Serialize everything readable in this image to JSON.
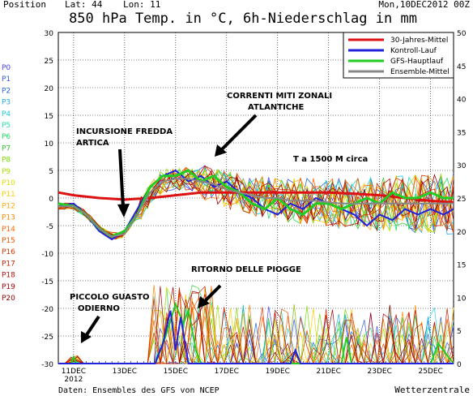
{
  "header": {
    "position": "Position",
    "lat": "Lat: 44",
    "lon": "Lon: 11",
    "run": "Mon,10DEC2012 00Z"
  },
  "chart_data": {
    "type": "line",
    "title": "850 hPa Temp. in °C, 6h-Niederschlag in mm",
    "ylim_left": [
      -30,
      30
    ],
    "ylim_right": [
      0,
      50
    ],
    "left_ticks": [
      30,
      25,
      20,
      15,
      10,
      5,
      0,
      -5,
      -10,
      -15,
      -20,
      -25,
      -30
    ],
    "right_ticks": [
      50,
      45,
      40,
      35,
      30,
      25,
      20,
      15,
      10,
      5,
      0
    ],
    "x_ticks": [
      "11DEC",
      "13DEC",
      "15DEC",
      "17DEC",
      "19DEC",
      "21DEC",
      "23DEC",
      "25DEC"
    ],
    "x_subtick": "2012",
    "grid": true,
    "legend_position": "top-right",
    "members": [
      "P0",
      "P1",
      "P2",
      "P3",
      "P4",
      "P5",
      "P6",
      "P7",
      "P8",
      "P9",
      "P10",
      "P11",
      "P12",
      "P13",
      "P14",
      "P15",
      "P16",
      "P17",
      "P18",
      "P19",
      "P20"
    ],
    "member_colors": [
      "#4444ff",
      "#3355ee",
      "#2266dd",
      "#22aaee",
      "#22ccdd",
      "#22ddaa",
      "#22dd66",
      "#33cc33",
      "#77dd00",
      "#aadd00",
      "#dddd00",
      "#ffcc00",
      "#ffaa00",
      "#ff8800",
      "#ff6600",
      "#ee5500",
      "#dd3300",
      "#cc2200",
      "#bb1100",
      "#aa0000",
      "#990000"
    ],
    "series": [
      {
        "name": "30-Jahres-Mittel",
        "color": "#dd1111",
        "x": [
          10.4,
          11,
          12,
          13,
          14,
          15,
          16,
          17,
          18,
          19,
          20,
          21,
          22,
          23,
          24,
          25,
          25.9
        ],
        "values": [
          1,
          0.5,
          0,
          -0.3,
          0,
          0.5,
          1,
          1,
          1,
          1,
          1,
          1,
          0.8,
          0.5,
          0,
          -0.5,
          -0.8
        ]
      },
      {
        "name": "Kontroll-Lauf",
        "color": "#2222dd",
        "x": [
          10.4,
          11,
          11.5,
          12,
          12.5,
          13,
          13.5,
          14,
          14.5,
          15,
          15.5,
          16,
          16.5,
          17,
          17.5,
          18,
          18.5,
          19,
          19.5,
          20,
          20.5,
          21,
          21.5,
          22,
          22.5,
          23,
          23.5,
          24,
          24.5,
          25,
          25.5,
          25.9
        ],
        "values": [
          -1.5,
          -1,
          -3,
          -6,
          -7.5,
          -6,
          -2,
          2,
          4,
          5,
          3,
          4,
          2,
          3,
          1,
          0,
          -2,
          -3,
          -1,
          -2,
          0,
          -1,
          -2,
          -3,
          -5,
          -3,
          -4,
          -2,
          -3,
          -2,
          -3,
          -2
        ]
      },
      {
        "name": "GFS-Hauptlauf",
        "color": "#22cc22",
        "x": [
          10.4,
          11,
          11.5,
          12,
          12.5,
          13,
          13.5,
          14,
          14.5,
          15,
          15.5,
          16,
          16.5,
          17,
          17.5,
          18,
          18.5,
          19,
          19.5,
          20,
          20.5,
          21,
          21.5,
          22,
          22.5,
          23,
          23.5,
          24,
          24.5,
          25,
          25.5,
          25.9
        ],
        "values": [
          -1,
          -1.5,
          -3,
          -5.5,
          -7,
          -6,
          -3,
          2,
          4,
          4,
          5,
          3,
          4,
          2,
          1,
          -1,
          -2,
          0,
          -2,
          -3,
          -1,
          -1,
          -2,
          -1,
          0,
          -1,
          1,
          0,
          0,
          1,
          0,
          0
        ]
      },
      {
        "name": "Ensemble-Mittel",
        "color": "#888888",
        "x": [
          10.4,
          11,
          11.5,
          12,
          12.5,
          13,
          13.5,
          14,
          14.5,
          15,
          15.5,
          16,
          16.5,
          17,
          17.5,
          18,
          18.5,
          19,
          19.5,
          20,
          20.5,
          21,
          21.5,
          22,
          22.5,
          23,
          23.5,
          24,
          24.5,
          25,
          25.5,
          25.9
        ],
        "values": [
          -1.5,
          -1.5,
          -3,
          -5.5,
          -7,
          -6.5,
          -3,
          1,
          3,
          3.5,
          3.5,
          3,
          2.5,
          1.5,
          1,
          0.5,
          0,
          0,
          -0.5,
          -0.5,
          -0.5,
          -0.8,
          -1,
          -1,
          -1,
          -1,
          -1,
          -1,
          -1,
          -1,
          -1,
          -1
        ]
      }
    ],
    "annotations": [
      "CORRENTI MITI ZONALI",
      "ATLANTICHE",
      "INCURSIONE FREDDA",
      "ARTICA",
      "T a 1500 M circa",
      "RITORNO DELLE PIOGGE",
      "PICCOLO GUASTO",
      "ODIERNO"
    ],
    "footer_left": "Daten: Ensembles des GFS von NCEP",
    "footer_right": "Wetterzentrale"
  }
}
